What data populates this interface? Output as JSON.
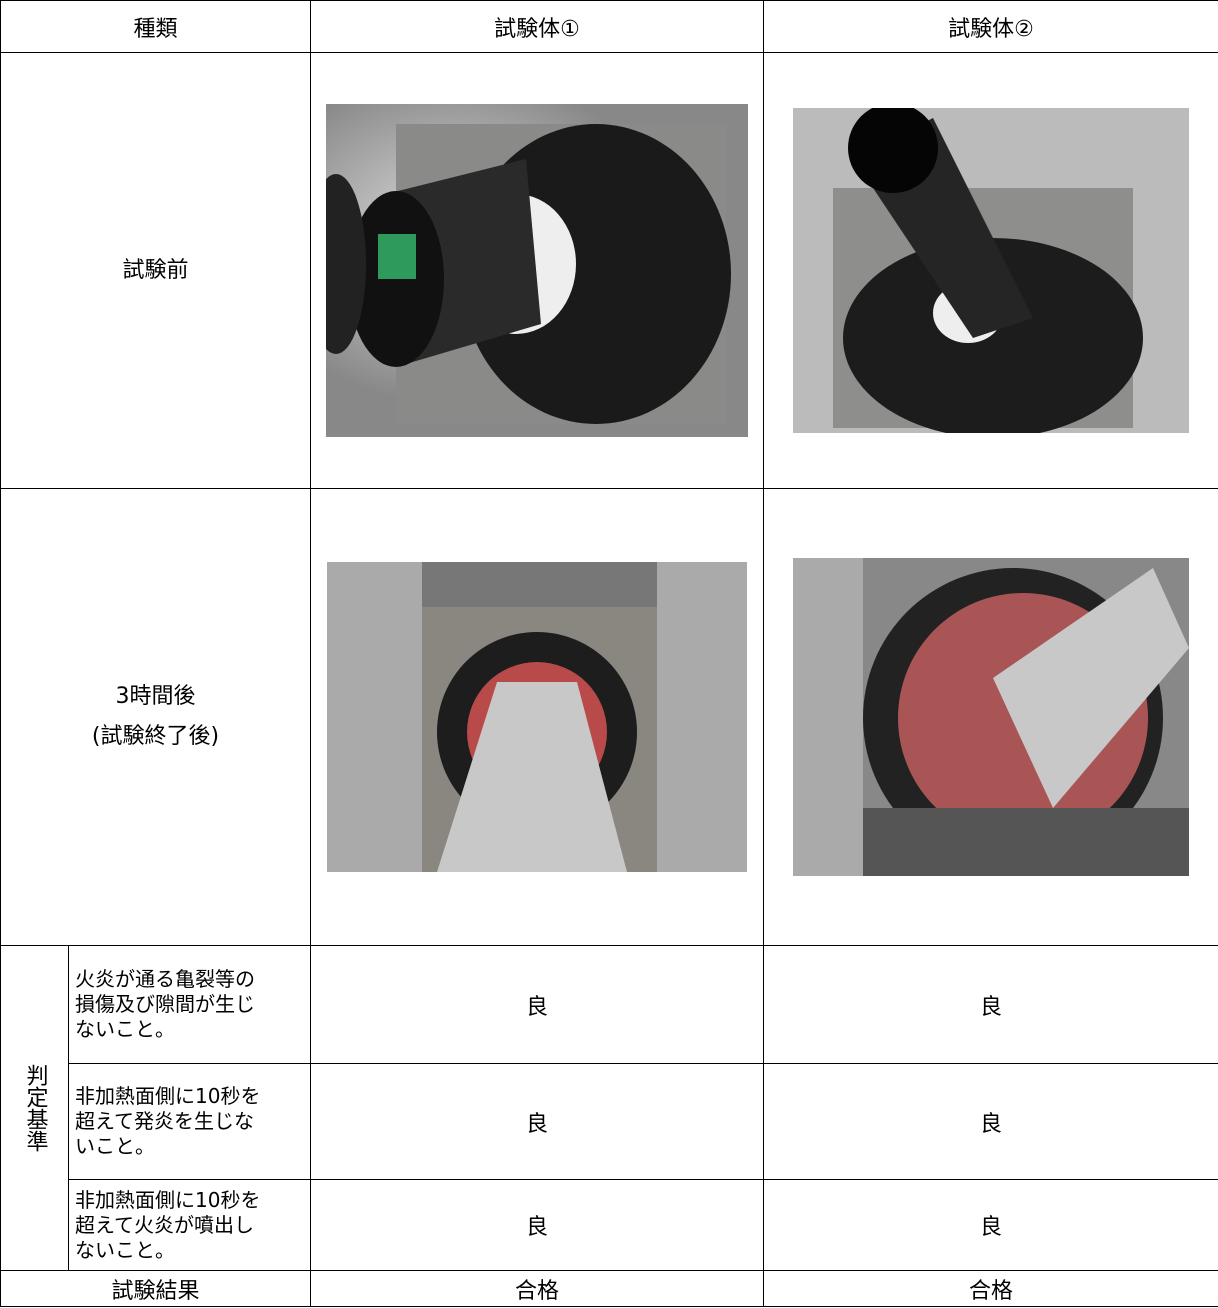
{
  "table": {
    "header": [
      "種類",
      "試験体①",
      "試験体②"
    ],
    "rows": [
      {
        "label": [
          "試験前"
        ]
      },
      {
        "label": [
          "3時間後",
          "(試験終了後)"
        ]
      }
    ],
    "criteria": {
      "label": "判定基準",
      "items": [
        {
          "lines": [
            "火炎が通る亀裂等の",
            "損傷及び隙間が生じ",
            "ないこと。"
          ],
          "results": [
            "良",
            "良"
          ]
        },
        {
          "lines": [
            "非加熱面側に10秒を",
            "超えて発炎を生じな",
            "いこと。"
          ],
          "results": [
            "良",
            "良"
          ]
        },
        {
          "lines": [
            "非加熱面側に10秒を",
            "超えて火炎が噴出し",
            "ないこと。"
          ],
          "results": [
            "良",
            "良"
          ]
        }
      ]
    },
    "result": {
      "label": "試験結果",
      "values": [
        "合格",
        "合格"
      ]
    }
  }
}
